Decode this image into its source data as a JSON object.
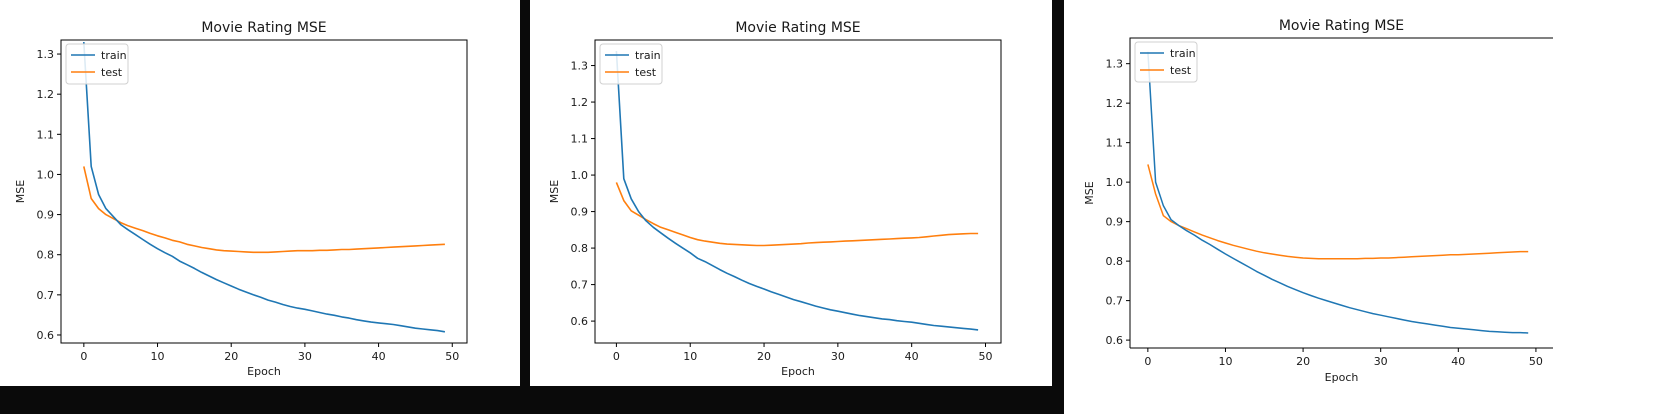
{
  "colors": {
    "train": "#1f77b4",
    "test": "#ff7f0e",
    "frame_dark": "#0a0a0a"
  },
  "chart_data": [
    {
      "type": "line",
      "title": "Movie Rating MSE",
      "xlabel": "Epoch",
      "ylabel": "MSE",
      "xlim": [
        -3.1,
        52.0
      ],
      "ylim": [
        0.58,
        1.335
      ],
      "xticks": [
        0,
        10,
        20,
        30,
        40,
        50
      ],
      "yticks": [
        0.6,
        0.7,
        0.8,
        0.9,
        1.0,
        1.1,
        1.2,
        1.3
      ],
      "ytick_labels": [
        "0.6",
        "0.7",
        "0.8",
        "0.9",
        "1.0",
        "1.1",
        "1.2",
        "1.3"
      ],
      "legend": "top-left",
      "grid": false,
      "series": [
        {
          "name": "train",
          "color": "#1f77b4",
          "x": [
            0,
            1,
            2,
            3,
            4,
            5,
            6,
            7,
            8,
            9,
            10,
            11,
            12,
            13,
            14,
            15,
            16,
            17,
            18,
            19,
            20,
            21,
            22,
            23,
            24,
            25,
            26,
            27,
            28,
            29,
            30,
            31,
            32,
            33,
            34,
            35,
            36,
            37,
            38,
            39,
            40,
            41,
            42,
            43,
            44,
            45,
            46,
            47,
            48,
            49
          ],
          "values": [
            1.33,
            1.02,
            0.95,
            0.915,
            0.895,
            0.875,
            0.862,
            0.85,
            0.838,
            0.826,
            0.815,
            0.805,
            0.796,
            0.784,
            0.775,
            0.766,
            0.756,
            0.747,
            0.738,
            0.73,
            0.722,
            0.714,
            0.707,
            0.7,
            0.694,
            0.687,
            0.682,
            0.676,
            0.671,
            0.667,
            0.664,
            0.66,
            0.656,
            0.652,
            0.649,
            0.645,
            0.642,
            0.638,
            0.635,
            0.632,
            0.63,
            0.628,
            0.626,
            0.623,
            0.62,
            0.617,
            0.615,
            0.613,
            0.611,
            0.608
          ]
        },
        {
          "name": "test",
          "color": "#ff7f0e",
          "x": [
            0,
            1,
            2,
            3,
            4,
            5,
            6,
            7,
            8,
            9,
            10,
            11,
            12,
            13,
            14,
            15,
            16,
            17,
            18,
            19,
            20,
            21,
            22,
            23,
            24,
            25,
            26,
            27,
            28,
            29,
            30,
            31,
            32,
            33,
            34,
            35,
            36,
            37,
            38,
            39,
            40,
            41,
            42,
            43,
            44,
            45,
            46,
            47,
            48,
            49
          ],
          "values": [
            1.02,
            0.94,
            0.915,
            0.9,
            0.89,
            0.88,
            0.872,
            0.866,
            0.86,
            0.853,
            0.847,
            0.842,
            0.836,
            0.832,
            0.826,
            0.822,
            0.818,
            0.815,
            0.812,
            0.81,
            0.809,
            0.808,
            0.807,
            0.806,
            0.806,
            0.806,
            0.807,
            0.808,
            0.809,
            0.81,
            0.81,
            0.81,
            0.811,
            0.811,
            0.812,
            0.813,
            0.813,
            0.814,
            0.815,
            0.816,
            0.817,
            0.818,
            0.819,
            0.82,
            0.821,
            0.822,
            0.823,
            0.824,
            0.825,
            0.826
          ]
        }
      ]
    },
    {
      "type": "line",
      "title": "Movie Rating MSE",
      "xlabel": "Epoch",
      "ylabel": "MSE",
      "xlim": [
        -2.9,
        52.1
      ],
      "ylim": [
        0.54,
        1.37
      ],
      "xticks": [
        0,
        10,
        20,
        30,
        40,
        50
      ],
      "yticks": [
        0.6,
        0.7,
        0.8,
        0.9,
        1.0,
        1.1,
        1.2,
        1.3
      ],
      "ytick_labels": [
        "0.6",
        "0.7",
        "0.8",
        "0.9",
        "1.0",
        "1.1",
        "1.2",
        "1.3"
      ],
      "legend": "top-left",
      "grid": false,
      "series": [
        {
          "name": "train",
          "color": "#1f77b4",
          "x": [
            0,
            1,
            2,
            3,
            4,
            5,
            6,
            7,
            8,
            9,
            10,
            11,
            12,
            13,
            14,
            15,
            16,
            17,
            18,
            19,
            20,
            21,
            22,
            23,
            24,
            25,
            26,
            27,
            28,
            29,
            30,
            31,
            32,
            33,
            34,
            35,
            36,
            37,
            38,
            39,
            40,
            41,
            42,
            43,
            44,
            45,
            46,
            47,
            48,
            49
          ],
          "values": [
            1.34,
            0.99,
            0.935,
            0.9,
            0.875,
            0.857,
            0.842,
            0.827,
            0.813,
            0.8,
            0.787,
            0.772,
            0.763,
            0.752,
            0.741,
            0.731,
            0.722,
            0.712,
            0.703,
            0.695,
            0.688,
            0.68,
            0.673,
            0.666,
            0.659,
            0.653,
            0.647,
            0.641,
            0.636,
            0.631,
            0.627,
            0.623,
            0.619,
            0.615,
            0.612,
            0.609,
            0.606,
            0.604,
            0.601,
            0.599,
            0.597,
            0.594,
            0.591,
            0.588,
            0.586,
            0.584,
            0.582,
            0.58,
            0.578,
            0.576
          ]
        },
        {
          "name": "test",
          "color": "#ff7f0e",
          "x": [
            0,
            1,
            2,
            3,
            4,
            5,
            6,
            7,
            8,
            9,
            10,
            11,
            12,
            13,
            14,
            15,
            16,
            17,
            18,
            19,
            20,
            21,
            22,
            23,
            24,
            25,
            26,
            27,
            28,
            29,
            30,
            31,
            32,
            33,
            34,
            35,
            36,
            37,
            38,
            39,
            40,
            41,
            42,
            43,
            44,
            45,
            46,
            47,
            48,
            49
          ],
          "values": [
            0.98,
            0.93,
            0.902,
            0.89,
            0.878,
            0.867,
            0.857,
            0.85,
            0.843,
            0.836,
            0.829,
            0.823,
            0.819,
            0.816,
            0.813,
            0.811,
            0.81,
            0.809,
            0.808,
            0.807,
            0.807,
            0.808,
            0.809,
            0.81,
            0.811,
            0.812,
            0.814,
            0.815,
            0.816,
            0.817,
            0.818,
            0.819,
            0.82,
            0.821,
            0.822,
            0.823,
            0.824,
            0.825,
            0.826,
            0.827,
            0.828,
            0.829,
            0.831,
            0.833,
            0.835,
            0.837,
            0.838,
            0.839,
            0.84,
            0.84
          ]
        }
      ]
    },
    {
      "type": "line",
      "title": "Movie Rating MSE",
      "xlabel": "Epoch",
      "ylabel": "MSE",
      "xlim": [
        -2.3,
        52.2
      ],
      "ylim": [
        0.58,
        1.365
      ],
      "xticks": [
        0,
        10,
        20,
        30,
        40,
        50
      ],
      "xtick_labels": [
        "0",
        "10",
        "20",
        "30",
        "40",
        "50"
      ],
      "yticks": [
        0.6,
        0.7,
        0.8,
        0.9,
        1.0,
        1.1,
        1.2,
        1.3
      ],
      "ytick_labels": [
        "0.6",
        "0.7",
        "0.8",
        "0.9",
        "1.0",
        "1.1",
        "1.2",
        "1.3"
      ],
      "legend": "top-left",
      "grid": false,
      "series": [
        {
          "name": "train",
          "color": "#1f77b4",
          "x": [
            0,
            1,
            2,
            3,
            4,
            5,
            6,
            7,
            8,
            9,
            10,
            11,
            12,
            13,
            14,
            15,
            16,
            17,
            18,
            19,
            20,
            21,
            22,
            23,
            24,
            25,
            26,
            27,
            28,
            29,
            30,
            31,
            32,
            33,
            34,
            35,
            36,
            37,
            38,
            39,
            40,
            41,
            42,
            43,
            44,
            45,
            46,
            47,
            48,
            49
          ],
          "values": [
            1.33,
            1.0,
            0.94,
            0.905,
            0.89,
            0.877,
            0.866,
            0.853,
            0.842,
            0.83,
            0.818,
            0.807,
            0.796,
            0.785,
            0.774,
            0.764,
            0.754,
            0.745,
            0.736,
            0.728,
            0.72,
            0.713,
            0.706,
            0.7,
            0.694,
            0.688,
            0.682,
            0.677,
            0.672,
            0.667,
            0.663,
            0.659,
            0.655,
            0.651,
            0.647,
            0.644,
            0.641,
            0.638,
            0.635,
            0.632,
            0.63,
            0.628,
            0.626,
            0.624,
            0.622,
            0.621,
            0.62,
            0.619,
            0.619,
            0.618
          ]
        },
        {
          "name": "test",
          "color": "#ff7f0e",
          "x": [
            0,
            1,
            2,
            3,
            4,
            5,
            6,
            7,
            8,
            9,
            10,
            11,
            12,
            13,
            14,
            15,
            16,
            17,
            18,
            19,
            20,
            21,
            22,
            23,
            24,
            25,
            26,
            27,
            28,
            29,
            30,
            31,
            32,
            33,
            34,
            35,
            36,
            37,
            38,
            39,
            40,
            41,
            42,
            43,
            44,
            45,
            46,
            47,
            48,
            49
          ],
          "values": [
            1.045,
            0.97,
            0.915,
            0.9,
            0.89,
            0.882,
            0.874,
            0.866,
            0.859,
            0.852,
            0.846,
            0.84,
            0.835,
            0.83,
            0.825,
            0.821,
            0.818,
            0.815,
            0.812,
            0.81,
            0.808,
            0.807,
            0.806,
            0.806,
            0.806,
            0.806,
            0.806,
            0.806,
            0.807,
            0.807,
            0.808,
            0.808,
            0.809,
            0.81,
            0.811,
            0.812,
            0.813,
            0.814,
            0.815,
            0.816,
            0.816,
            0.817,
            0.818,
            0.819,
            0.82,
            0.821,
            0.822,
            0.823,
            0.824,
            0.824
          ]
        }
      ]
    }
  ]
}
